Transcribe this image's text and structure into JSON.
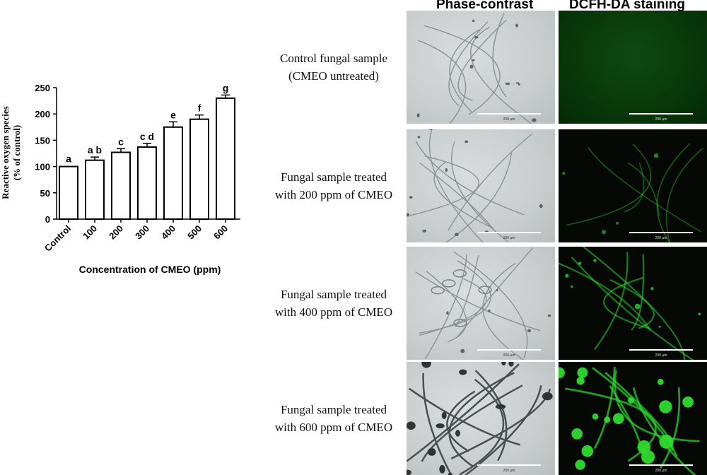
{
  "chart_data": {
    "type": "bar",
    "categories": [
      "Control",
      "100",
      "200",
      "300",
      "400",
      "500",
      "600"
    ],
    "values": [
      100,
      112,
      127,
      137,
      175,
      190,
      230
    ],
    "errors": [
      0,
      6,
      7,
      7,
      10,
      8,
      6
    ],
    "significance_letters": [
      "a",
      "a b",
      "c",
      "c d",
      "e",
      "f",
      "g"
    ],
    "xlabel": "Concentration of CMEO (ppm)",
    "ylabel_line1": "Reactive oxygen species",
    "ylabel_line2": "(% of control)",
    "ylim": [
      0,
      250
    ],
    "yticks": [
      0,
      50,
      100,
      150,
      200,
      250
    ],
    "bar_fill": "#ffffff",
    "bar_stroke": "#000000"
  },
  "microscopy": {
    "column_headers": [
      "Phase-contrast",
      "DCFH-DA staining"
    ],
    "rows": [
      {
        "label_line1": "Control fungal sample",
        "label_line2": "(CMEO untreated)",
        "scale_phase": "200 µm",
        "scale_dcfh": "200 µm"
      },
      {
        "label_line1": "Fungal sample treated",
        "label_line2": "with 200 ppm of CMEO",
        "scale_phase": "200 µm",
        "scale_dcfh": "200 µm"
      },
      {
        "label_line1": "Fungal sample treated",
        "label_line2": "with 400 ppm of CMEO",
        "scale_phase": "200 µm",
        "scale_dcfh": "200 µm"
      },
      {
        "label_line1": "Fungal sample treated",
        "label_line2": "with 600 ppm of CMEO",
        "scale_phase": "200 µm",
        "scale_dcfh": "200 µm"
      }
    ],
    "colors": {
      "stain": "#2fdc2f",
      "phase_bg": "#c9cdcd",
      "scale_bar": "#ffffff"
    }
  }
}
